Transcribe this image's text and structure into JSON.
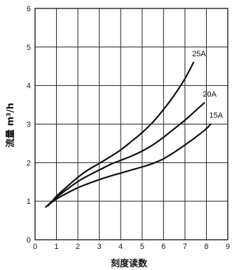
{
  "chart_data": {
    "type": "line",
    "title": "",
    "xlabel": "刻度读数",
    "ylabel": "流量 m³/h",
    "ylabel_parts": {
      "main": "流量 m",
      "sup": "3",
      "tail": "/h"
    },
    "xlim": [
      0,
      9
    ],
    "ylim": [
      0,
      6
    ],
    "xticks": [
      0,
      1,
      2,
      3,
      4,
      5,
      6,
      7,
      8,
      9
    ],
    "yticks": [
      0,
      1,
      2,
      3,
      4,
      5,
      6
    ],
    "grid": true,
    "legend": "labels at curve ends",
    "series": [
      {
        "name": "25A",
        "x": [
          0.6,
          0.8,
          1.0,
          1.5,
          2.0,
          2.5,
          3.0,
          3.5,
          4.0,
          4.5,
          5.0,
          5.5,
          6.0,
          6.5,
          7.0,
          7.4
        ],
        "y": [
          0.88,
          1.0,
          1.13,
          1.38,
          1.62,
          1.82,
          1.98,
          2.15,
          2.33,
          2.55,
          2.78,
          3.05,
          3.38,
          3.75,
          4.18,
          4.6
        ]
      },
      {
        "name": "20A",
        "x": [
          0.6,
          0.8,
          1.0,
          1.5,
          2.0,
          2.5,
          3.0,
          3.5,
          4.0,
          4.5,
          5.0,
          5.5,
          6.0,
          6.5,
          7.0,
          7.5,
          7.9
        ],
        "y": [
          0.9,
          1.0,
          1.1,
          1.31,
          1.51,
          1.67,
          1.81,
          1.95,
          2.06,
          2.17,
          2.3,
          2.46,
          2.66,
          2.88,
          3.1,
          3.35,
          3.55
        ]
      },
      {
        "name": "15A",
        "x": [
          0.5,
          0.8,
          1.0,
          1.5,
          2.0,
          2.5,
          3.0,
          3.5,
          4.0,
          4.5,
          5.0,
          5.5,
          6.0,
          6.5,
          7.0,
          7.5,
          8.0,
          8.2
        ],
        "y": [
          0.85,
          0.98,
          1.06,
          1.21,
          1.35,
          1.46,
          1.56,
          1.65,
          1.73,
          1.81,
          1.89,
          1.98,
          2.1,
          2.27,
          2.46,
          2.66,
          2.88,
          3.0
        ]
      }
    ]
  }
}
